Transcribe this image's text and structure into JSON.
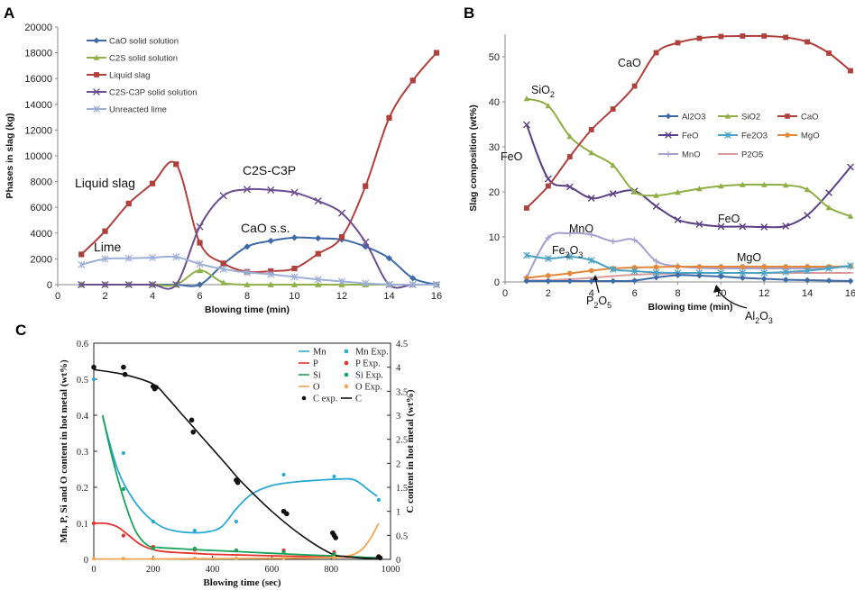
{
  "colors": {
    "cao": "#3f6aa8",
    "c2s": "#8fb046",
    "liquid": "#b0403c",
    "c2sc3p": "#6d4d92",
    "lime": "#9db0d8",
    "al2o3": "#3e6aa8",
    "sio2": "#8fae45",
    "caoB": "#b0403c",
    "feo": "#5b3f86",
    "fe2o3": "#4aa3c4",
    "mgo": "#e4873a",
    "mno": "#a6a0cf",
    "p2o5": "#d99a9a",
    "mn": "#2aa8d6",
    "p": "#e8302c",
    "si": "#18a35a",
    "o": "#f2a550",
    "c": "#111111"
  },
  "chart_data": [
    {
      "panel": "A",
      "type": "line",
      "xlabel": "Blowing time (min)",
      "ylabel": "Phases in slag (kg)",
      "xlim": [
        0,
        16
      ],
      "ylim": [
        0,
        20000
      ],
      "xticks": [
        0,
        2,
        4,
        6,
        8,
        10,
        12,
        14,
        16
      ],
      "yticks": [
        0,
        2000,
        4000,
        6000,
        8000,
        10000,
        12000,
        14000,
        16000,
        18000,
        20000
      ],
      "x": [
        1,
        2,
        3,
        4,
        5,
        6,
        7,
        8,
        9,
        10,
        11,
        12,
        13,
        14,
        15,
        16
      ],
      "series": [
        {
          "key": "cao",
          "name": "CaO solid solution",
          "marker": "diamond",
          "values": [
            0,
            0,
            0,
            0,
            0,
            0,
            1600,
            2950,
            3400,
            3650,
            3600,
            3500,
            2950,
            2050,
            500,
            0
          ]
        },
        {
          "key": "c2s",
          "name": "C2S solid solution",
          "marker": "triangle",
          "values": [
            0,
            0,
            0,
            0,
            0,
            1100,
            150,
            0,
            0,
            0,
            0,
            0,
            0,
            0,
            0,
            0
          ]
        },
        {
          "key": "liquid",
          "name": "Liquid slag",
          "marker": "square",
          "values": [
            2350,
            4150,
            6300,
            7850,
            9350,
            3250,
            1650,
            1000,
            1050,
            1250,
            2400,
            3700,
            7650,
            12950,
            15850,
            18000
          ]
        },
        {
          "key": "c2sc3p",
          "name": "C2S-C3P solid solution",
          "marker": "x",
          "values": [
            0,
            0,
            0,
            0,
            0,
            4500,
            6900,
            7400,
            7350,
            7150,
            6500,
            5550,
            3300,
            0,
            0,
            0
          ]
        },
        {
          "key": "lime",
          "name": "Unreacted lime",
          "marker": "star",
          "values": [
            1550,
            2000,
            2050,
            2100,
            2150,
            1600,
            1200,
            950,
            800,
            600,
            400,
            250,
            100,
            20,
            0,
            0
          ]
        }
      ],
      "annotations": {
        "liquid": "Liquid slag",
        "lime": "Lime",
        "c2sc3p": "C2S-C3P",
        "cao": "CaO s.s."
      }
    },
    {
      "panel": "B",
      "type": "line",
      "xlabel": "Blowing time (min)",
      "ylabel": "Slag composition (wt%)",
      "xlim": [
        0,
        16
      ],
      "ylim": [
        0,
        55
      ],
      "xticks": [
        0,
        2,
        4,
        6,
        8,
        10,
        12,
        14,
        16
      ],
      "yticks": [
        0,
        10,
        20,
        30,
        40,
        50
      ],
      "x": [
        1,
        2,
        3,
        4,
        5,
        6,
        7,
        8,
        9,
        10,
        11,
        12,
        13,
        14,
        15,
        16
      ],
      "series": [
        {
          "key": "al2o3",
          "name": "Al2O3",
          "marker": "diamond",
          "values": [
            0.2,
            0.2,
            0.2,
            0.2,
            0.2,
            0.3,
            1.0,
            1.5,
            1.4,
            1.2,
            0.9,
            0.7,
            0.5,
            0.4,
            0.3,
            0.2
          ]
        },
        {
          "key": "sio2",
          "name": "SiO2",
          "marker": "triangle",
          "values": [
            40.7,
            39.1,
            32.3,
            28.7,
            25.9,
            20.0,
            19.2,
            19.9,
            20.7,
            21.3,
            21.6,
            21.6,
            21.5,
            20.5,
            16.5,
            14.6
          ]
        },
        {
          "key": "caoB",
          "name": "CaO",
          "marker": "square",
          "values": [
            16.4,
            21.3,
            27.8,
            33.8,
            38.4,
            43.5,
            50.9,
            53.1,
            54.1,
            54.5,
            54.6,
            54.6,
            54.3,
            53.3,
            50.8,
            46.9
          ]
        },
        {
          "key": "feo",
          "name": "FeO",
          "marker": "x",
          "values": [
            34.9,
            22.9,
            21.1,
            18.6,
            19.6,
            20.2,
            16.8,
            13.8,
            12.8,
            12.3,
            12.3,
            12.2,
            12.4,
            14.8,
            19.8,
            25.5
          ]
        },
        {
          "key": "fe2o3",
          "name": "Fe2O3",
          "marker": "star",
          "values": [
            5.9,
            5.2,
            5.6,
            4.8,
            2.8,
            2.4,
            2.1,
            2.0,
            2.0,
            2.0,
            2.0,
            2.0,
            2.2,
            2.5,
            3.0,
            3.6
          ]
        },
        {
          "key": "mgo",
          "name": "MgO",
          "marker": "circle",
          "values": [
            0.9,
            1.4,
            1.9,
            2.5,
            3.0,
            3.2,
            3.3,
            3.4,
            3.4,
            3.4,
            3.4,
            3.4,
            3.4,
            3.4,
            3.4,
            3.5
          ]
        },
        {
          "key": "mno",
          "name": "MnO",
          "marker": "plus",
          "values": [
            1.0,
            9.8,
            10.8,
            10.5,
            9.0,
            9.3,
            4.6,
            3.5,
            3.1,
            3.0,
            3.0,
            3.0,
            3.0,
            3.0,
            3.2,
            3.4
          ]
        },
        {
          "key": "p2o5",
          "name": "P2O5",
          "marker": "dash",
          "values": [
            0.3,
            0.4,
            0.6,
            0.9,
            1.3,
            1.6,
            1.8,
            1.9,
            2.0,
            2.0,
            2.0,
            2.0,
            2.0,
            2.0,
            2.0,
            2.0
          ]
        }
      ],
      "annotations": {
        "cao": "CaO",
        "sio2": "SiO",
        "feoL": "FeO",
        "mno": "MnO",
        "fe2o3": "Fe",
        "feoR": "FeO",
        "mgo": "MgO",
        "p2o5": "P",
        "al2o3": "Al",
        "o": "O",
        "s2": "2",
        "s3": "3",
        "s5": "5"
      }
    },
    {
      "panel": "C",
      "type": "line",
      "xlabel": "Blowing time (sec)",
      "ylabel": "Mn, P, Si and O content in hot metal (wt%)",
      "y2label": "C content in hot metal (wt%)",
      "xlim": [
        0,
        1000
      ],
      "ylim": [
        0,
        0.6
      ],
      "y2lim": [
        0,
        4.5
      ],
      "xticks": [
        0,
        200,
        400,
        600,
        800,
        1000
      ],
      "yticks": [
        0,
        0.1,
        0.2,
        0.3,
        0.4,
        0.5,
        0.6
      ],
      "y2ticks": [
        0,
        0.5,
        1,
        1.5,
        2,
        2.5,
        3,
        3.5,
        4,
        4.5
      ],
      "lines": [
        {
          "key": "mn",
          "name": "Mn",
          "axis": "y1",
          "x": [
            30,
            80,
            130,
            180,
            230,
            280,
            330,
            380,
            430,
            480,
            530,
            600,
            680,
            760,
            830,
            880,
            930,
            955
          ],
          "y": [
            0.395,
            0.25,
            0.17,
            0.12,
            0.09,
            0.078,
            0.074,
            0.076,
            0.09,
            0.14,
            0.18,
            0.205,
            0.215,
            0.22,
            0.223,
            0.22,
            0.19,
            0.175
          ]
        },
        {
          "key": "p",
          "name": "P",
          "axis": "y1",
          "x": [
            0,
            40,
            80,
            120,
            160,
            210,
            260,
            330,
            400,
            500,
            600,
            700,
            800,
            880,
            930,
            955
          ],
          "y": [
            0.1,
            0.1,
            0.09,
            0.065,
            0.04,
            0.025,
            0.02,
            0.017,
            0.014,
            0.012,
            0.01,
            0.008,
            0.006,
            0.006,
            0.005,
            0.005
          ]
        },
        {
          "key": "si",
          "name": "Si",
          "axis": "y1",
          "x": [
            30,
            60,
            100,
            140,
            180,
            220,
            280,
            340,
            420,
            500,
            600,
            700,
            800,
            880,
            955
          ],
          "y": [
            0.4,
            0.29,
            0.17,
            0.08,
            0.04,
            0.033,
            0.03,
            0.027,
            0.024,
            0.021,
            0.017,
            0.013,
            0.01,
            0.007,
            0.004
          ]
        },
        {
          "key": "o",
          "name": "O",
          "axis": "y1",
          "x": [
            0,
            100,
            200,
            400,
            600,
            800,
            860,
            900,
            930,
            960
          ],
          "y": [
            0.001,
            0.001,
            0.001,
            0.002,
            0.003,
            0.005,
            0.01,
            0.025,
            0.055,
            0.1
          ]
        },
        {
          "key": "c",
          "name": "C",
          "axis": "y2",
          "x": [
            0,
            100,
            200,
            250,
            300,
            350,
            400,
            450,
            500,
            600,
            700,
            800,
            850,
            900,
            955
          ],
          "y": [
            3.95,
            3.85,
            3.65,
            3.35,
            3.0,
            2.65,
            2.3,
            1.95,
            1.6,
            1.0,
            0.5,
            0.12,
            0.06,
            0.03,
            0.01
          ]
        }
      ],
      "points": [
        {
          "key": "mn",
          "name": "Mn Exp.",
          "axis": "y1",
          "x": [
            0,
            100,
            200,
            340,
            480,
            640,
            810,
            960
          ],
          "y": [
            0.5,
            0.295,
            0.105,
            0.08,
            0.105,
            0.235,
            0.23,
            0.165
          ]
        },
        {
          "key": "p",
          "name": "P Exp.",
          "axis": "y1",
          "x": [
            0,
            100,
            200,
            340,
            480,
            640,
            810,
            960
          ],
          "y": [
            0.1,
            0.066,
            0.035,
            0.027,
            0.025,
            0.025,
            0.02,
            0.01
          ]
        },
        {
          "key": "si",
          "name": "Si Exp.",
          "axis": "y1",
          "x": [
            100,
            200,
            340,
            480,
            640,
            810,
            960
          ],
          "y": [
            0.195,
            0.03,
            0.03,
            0.025,
            0.02,
            0.015,
            0.005
          ]
        },
        {
          "key": "o",
          "name": "O Exp.",
          "axis": "y1",
          "x": [
            0,
            100,
            200,
            340,
            480,
            640,
            810,
            960
          ],
          "y": [
            0.002,
            0.002,
            0.002,
            0.003,
            0.003,
            0.004,
            0.005,
            0.01
          ]
        },
        {
          "key": "c",
          "name": "C exp.",
          "axis": "y2",
          "x": [
            0,
            100,
            105,
            200,
            205,
            210,
            330,
            335,
            480,
            485,
            640,
            650,
            805,
            810,
            815,
            960,
            965
          ],
          "y": [
            4.0,
            4.0,
            3.85,
            3.6,
            3.55,
            3.58,
            2.9,
            2.65,
            1.65,
            1.6,
            1.0,
            0.95,
            0.55,
            0.5,
            0.45,
            0.05,
            0.03
          ]
        }
      ],
      "legend_order": [
        "Mn",
        "Mn Exp.",
        "P",
        "P Exp.",
        "Si",
        "Si Exp.",
        "O",
        "O Exp.",
        "C exp.",
        "C"
      ]
    }
  ]
}
